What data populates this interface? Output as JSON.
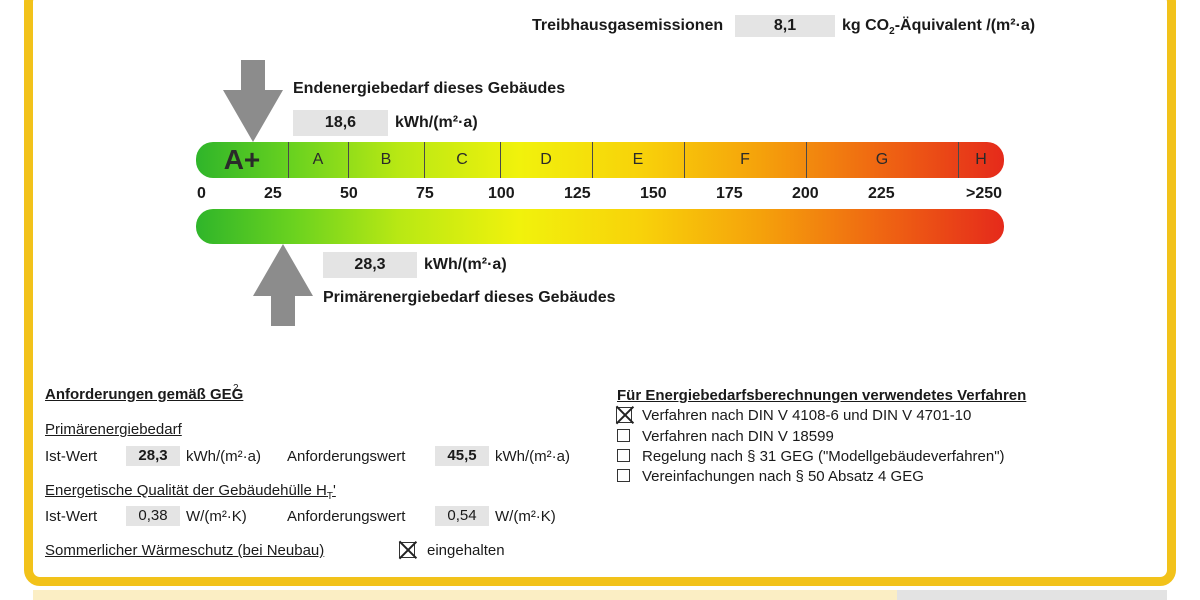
{
  "emissions": {
    "label": "Treibhausgasemissionen",
    "value": "8,1",
    "unit_prefix": "kg CO",
    "unit_sub": "2",
    "unit_suffix": "-Äquivalent /(m²·a)"
  },
  "end_energy": {
    "label": "Endenergiebedarf dieses Gebäudes",
    "value": "18,6",
    "unit": "kWh/(m²·a)"
  },
  "primary_energy": {
    "label": "Primärenergiebedarf dieses Gebäudes",
    "value": "28,3",
    "unit": "kWh/(m²·a)"
  },
  "scale": {
    "classes": [
      "A+",
      "A",
      "B",
      "C",
      "D",
      "E",
      "F",
      "G",
      "H"
    ],
    "ticks": [
      "0",
      "25",
      "50",
      "75",
      "100",
      "125",
      "150",
      "175",
      "200",
      "225",
      ">250"
    ],
    "colors": {
      "low": "#2fb52a",
      "mid": "#f1f20c",
      "high": "#e52a1b"
    }
  },
  "requirements": {
    "title": "Anforderungen gemäß GEG",
    "title_sup": "2",
    "primary": {
      "heading": "Primärenergiebedarf",
      "ist_label": "Ist-Wert",
      "ist_value": "28,3",
      "ist_unit": "kWh/(m²·a)",
      "req_label": "Anforderungswert",
      "req_value": "45,5",
      "req_unit": "kWh/(m²·a)"
    },
    "envelope": {
      "heading_prefix": "Energetische Qualität der Gebäudehülle H",
      "heading_sub": "T",
      "heading_suffix": "'",
      "ist_label": "Ist-Wert",
      "ist_value": "0,38",
      "ist_unit": "W/(m²·K)",
      "req_label": "Anforderungswert",
      "req_value": "0,54",
      "req_unit": "W/(m²·K)"
    },
    "summer": {
      "label": "Sommerlicher Wärmeschutz (bei Neubau)",
      "status": "eingehalten",
      "checked": true
    }
  },
  "methods": {
    "title": "Für Energiebedarfsberechnungen verwendetes Verfahren",
    "options": [
      {
        "label": "Verfahren nach DIN V 4108-6 und DIN V 4701-10",
        "checked": true
      },
      {
        "label": "Verfahren nach DIN V 18599",
        "checked": false
      },
      {
        "label": "Regelung nach § 31 GEG (\"Modellgebäudeverfahren\")",
        "checked": false
      },
      {
        "label": "Vereinfachungen nach § 50 Absatz 4 GEG",
        "checked": false
      }
    ]
  }
}
